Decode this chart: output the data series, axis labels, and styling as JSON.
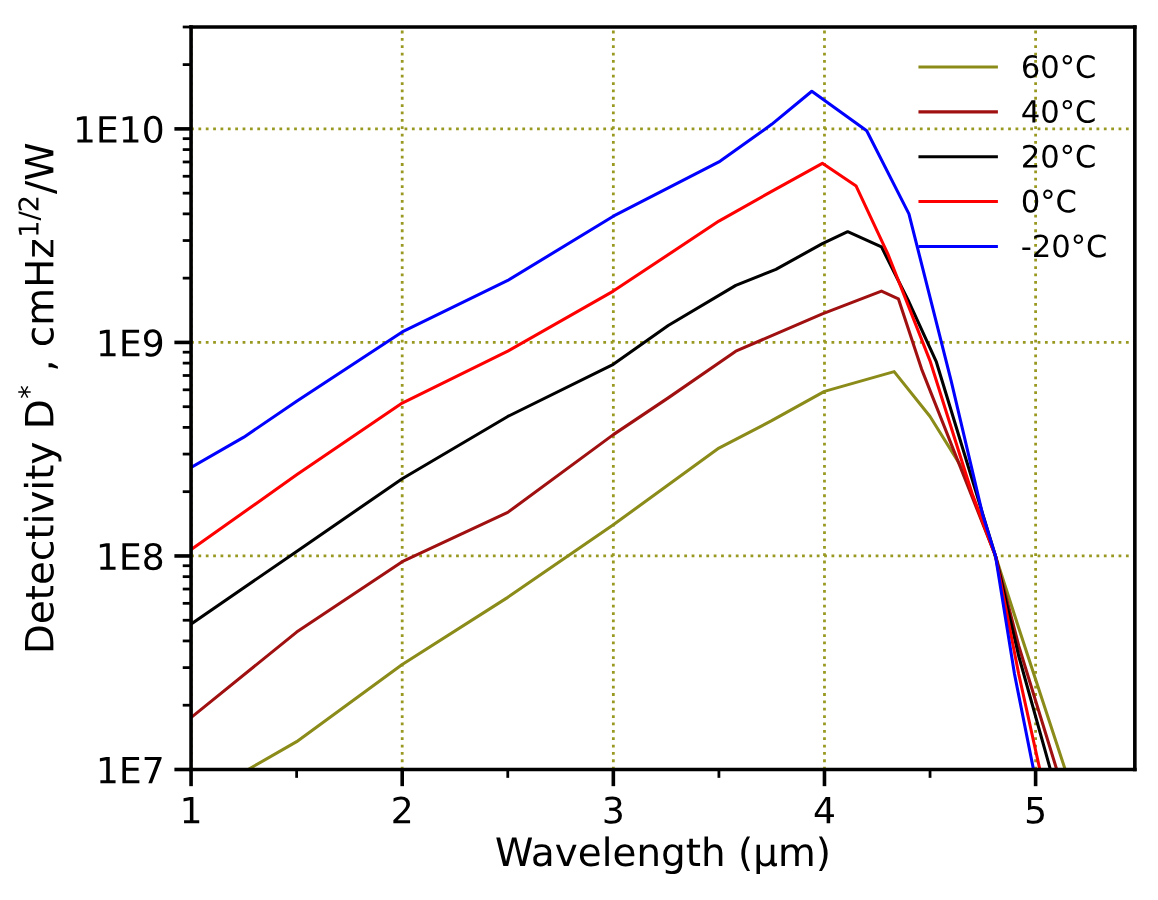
{
  "chart_data": {
    "type": "line",
    "xlabel": "Wavelength (μm)",
    "ylabel": "Detectivity D$^{*}$ , cmHz$^{1/2}$/W",
    "log": "y",
    "grid": true,
    "legend": "top right",
    "line_style": "solid",
    "marker": "none",
    "xlim": [
      1,
      5.47
    ],
    "ylim": [
      10000000.0,
      30000000000.0
    ],
    "xticks": [
      1,
      {
        "value": 1.5,
        "label": null
      },
      2,
      {
        "value": 2.5,
        "label": null
      },
      3,
      {
        "value": 3.5,
        "label": null
      },
      4,
      {
        "value": 4.5,
        "label": null
      },
      5
    ],
    "yticks": [
      {
        "value": 10000000.0,
        "label": "1E7"
      },
      {
        "value": 100000000.0,
        "label": "1E8"
      },
      {
        "value": 1000000000.0,
        "label": "1E9"
      },
      {
        "value": 10000000000.0,
        "label": "1E10"
      }
    ],
    "series": [
      {
        "name": "60°C",
        "color": "#8b8b1a",
        "x": [
          1.27,
          1.5,
          2,
          2.5,
          3,
          3.5,
          3.75,
          4,
          4.33,
          4.5,
          4.65,
          4.81,
          4.92,
          5.14
        ],
        "values": [
          10000000.0,
          13500000.0,
          31000000.0,
          64000000.0,
          140000000.0,
          320000000.0,
          430000000.0,
          590000000.0,
          730000000.0,
          450000000.0,
          260000000.0,
          100000000.0,
          46000000.0,
          10000000.0
        ]
      },
      {
        "name": "40°C",
        "color": "#a01010",
        "x": [
          1,
          1.5,
          2,
          2.5,
          3,
          3.26,
          3.58,
          3.99,
          4.27,
          4.35,
          4.46,
          4.81,
          4.92,
          5.1
        ],
        "values": [
          17500000.0,
          44000000.0,
          94000000.0,
          160000000.0,
          370000000.0,
          550000000.0,
          910000000.0,
          1360000000.0,
          1740000000.0,
          1600000000.0,
          750000000.0,
          100000000.0,
          38000000.0,
          10000000.0
        ]
      },
      {
        "name": "20°C",
        "color": "#000000",
        "x": [
          1,
          1.5,
          2,
          2.5,
          3,
          3.26,
          3.58,
          3.77,
          3.99,
          4.11,
          4.27,
          4.4,
          4.53,
          4.81,
          4.92,
          5.07
        ],
        "values": [
          48000000.0,
          105000000.0,
          230000000.0,
          450000000.0,
          790000000.0,
          1200000000.0,
          1850000000.0,
          2200000000.0,
          2900000000.0,
          3300000000.0,
          2800000000.0,
          1550000000.0,
          810000000.0,
          100000000.0,
          34000000.0,
          10000000.0
        ]
      },
      {
        "name": "0°C",
        "color": "#ff0000",
        "x": [
          1,
          1.5,
          2,
          2.5,
          3,
          3.5,
          3.75,
          3.99,
          4.15,
          4.3,
          4.5,
          4.7,
          4.81,
          4.92,
          5.02
        ],
        "values": [
          107000000.0,
          240000000.0,
          520000000.0,
          910000000.0,
          1740000000.0,
          3700000000.0,
          5100000000.0,
          6900000000.0,
          5400000000.0,
          2600000000.0,
          820000000.0,
          195000000.0,
          100000000.0,
          28000000.0,
          10000000.0
        ]
      },
      {
        "name": "-20°C",
        "color": "#0000ff",
        "x": [
          1,
          1.25,
          1.5,
          2,
          2.5,
          3,
          3.5,
          3.75,
          3.94,
          4.2,
          4.4,
          4.6,
          4.75,
          4.81,
          4.9,
          4.99
        ],
        "values": [
          260000000.0,
          360000000.0,
          530000000.0,
          1120000000.0,
          1950000000.0,
          3900000000.0,
          7000000000.0,
          10500000000.0,
          15000000000.0,
          9800000000.0,
          4000000000.0,
          660000000.0,
          155000000.0,
          100000000.0,
          28000000.0,
          10000000.0
        ]
      }
    ]
  }
}
